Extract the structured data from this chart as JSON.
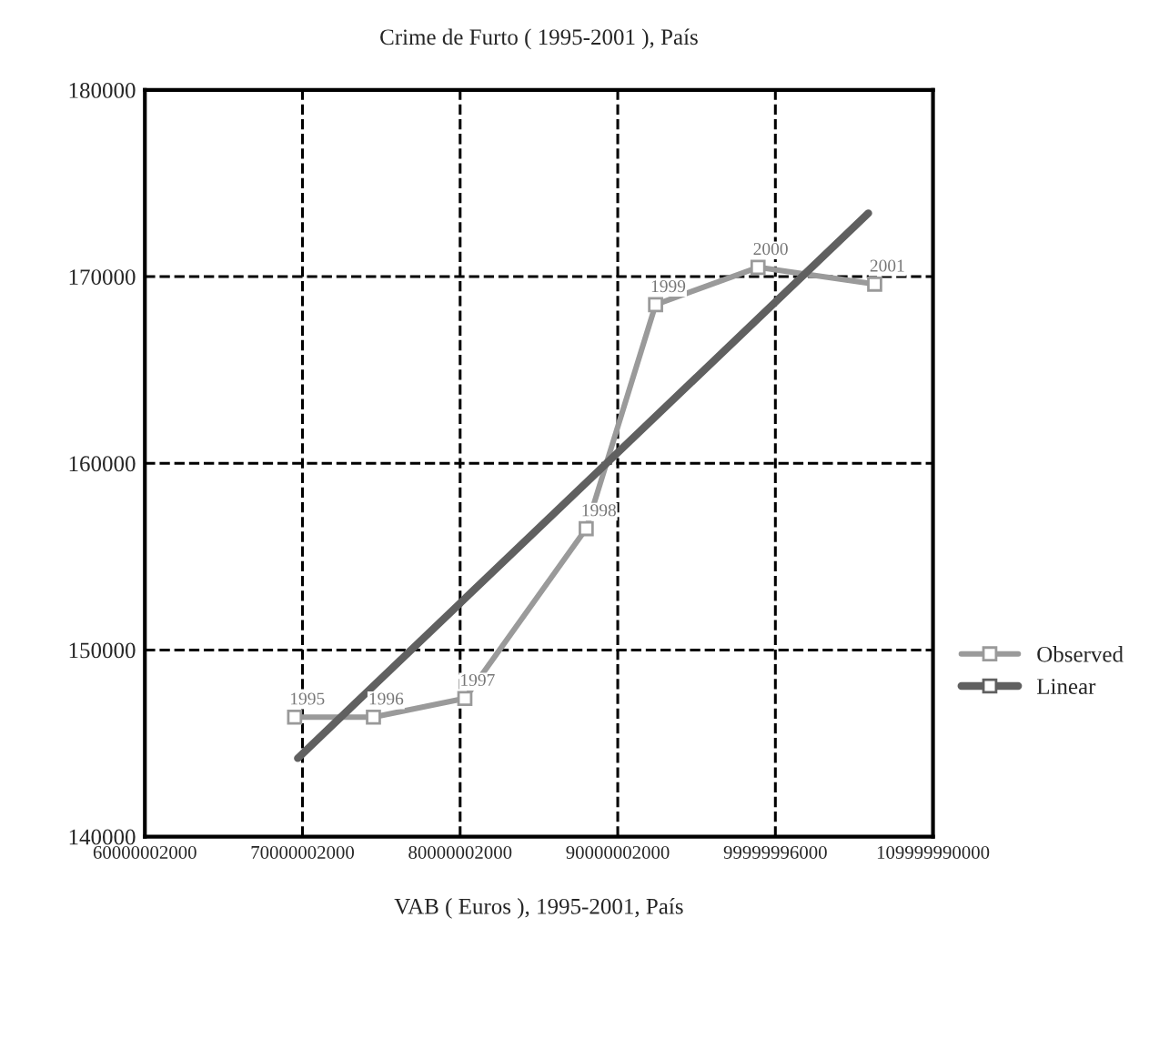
{
  "chart_data": {
    "type": "line",
    "title": "Crime de Furto ( 1995-2001 ), País",
    "xlabel": "VAB ( Euros ), 1995-2001, País",
    "xlim": [
      60000002000,
      109999990000
    ],
    "ylim": [
      140000,
      180000
    ],
    "xticks": [
      {
        "value": 60000002000,
        "label": "60000002000"
      },
      {
        "value": 70000002000,
        "label": "70000002000"
      },
      {
        "value": 80000002000,
        "label": "80000002000"
      },
      {
        "value": 90000002000,
        "label": "90000002000"
      },
      {
        "value": 99999996000,
        "label": "99999996000"
      },
      {
        "value": 109999990000,
        "label": "109999990000"
      }
    ],
    "yticks": [
      140000,
      150000,
      160000,
      170000,
      180000
    ],
    "grid": true,
    "legend": "right",
    "series": [
      {
        "name": "Observed",
        "color": "#9a9a9a",
        "marker": "square",
        "x": [
          69500000000,
          74500000000,
          80300000000,
          88000000000,
          92400000000,
          98900000000,
          106300000000
        ],
        "values": [
          146400,
          146400,
          147400,
          156500,
          168500,
          170500,
          169600
        ]
      },
      {
        "name": "Linear",
        "color": "#606060",
        "marker": "none",
        "x": [
          69700000000,
          105900000000
        ],
        "values": [
          144200,
          173400
        ]
      }
    ],
    "annotations": [
      {
        "text": "1995",
        "x": 69500000000,
        "y": 146400
      },
      {
        "text": "1996",
        "x": 74500000000,
        "y": 146400
      },
      {
        "text": "1997",
        "x": 80300000000,
        "y": 147400
      },
      {
        "text": "1998",
        "x": 88000000000,
        "y": 156500
      },
      {
        "text": "1999",
        "x": 92400000000,
        "y": 168500
      },
      {
        "text": "2000",
        "x": 98900000000,
        "y": 170500
      },
      {
        "text": "2001",
        "x": 106300000000,
        "y": 169600
      }
    ]
  }
}
